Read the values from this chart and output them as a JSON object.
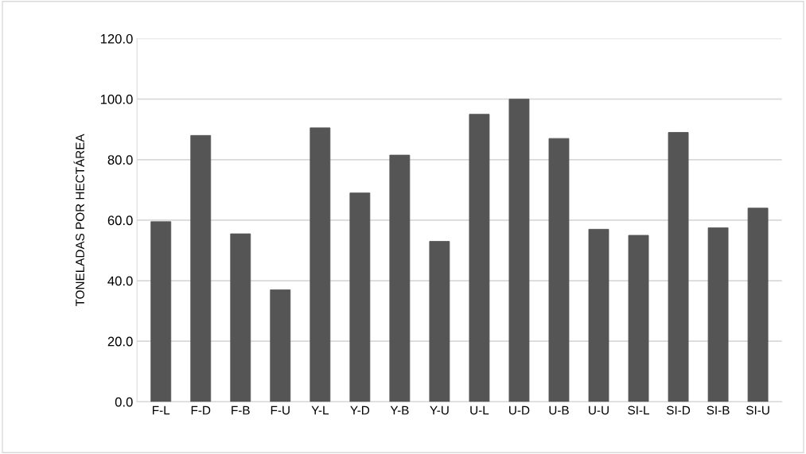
{
  "chart_data": {
    "type": "bar",
    "ylabel": "TONELADAS POR HECTÁREA",
    "categories": [
      "F-L",
      "F-D",
      "F-B",
      "F-U",
      "Y-L",
      "Y-D",
      "Y-B",
      "Y-U",
      "U-L",
      "U-D",
      "U-B",
      "U-U",
      "SI-L",
      "SI-D",
      "SI-B",
      "SI-U"
    ],
    "values": [
      59.5,
      88,
      55.5,
      37,
      90.5,
      69,
      81.5,
      53,
      95,
      100,
      87,
      57,
      55,
      89,
      57.5,
      64
    ],
    "color": "#555555",
    "ylim": [
      0,
      120
    ],
    "yticks": [
      {
        "value": 0,
        "label": "0.0"
      },
      {
        "value": 20,
        "label": "20.0"
      },
      {
        "value": 40,
        "label": "40.0"
      },
      {
        "value": 60,
        "label": "60.0"
      },
      {
        "value": 80,
        "label": "80.0"
      },
      {
        "value": 100,
        "label": "100.0"
      },
      {
        "value": 120,
        "label": "120.0"
      }
    ],
    "grid": "y"
  }
}
